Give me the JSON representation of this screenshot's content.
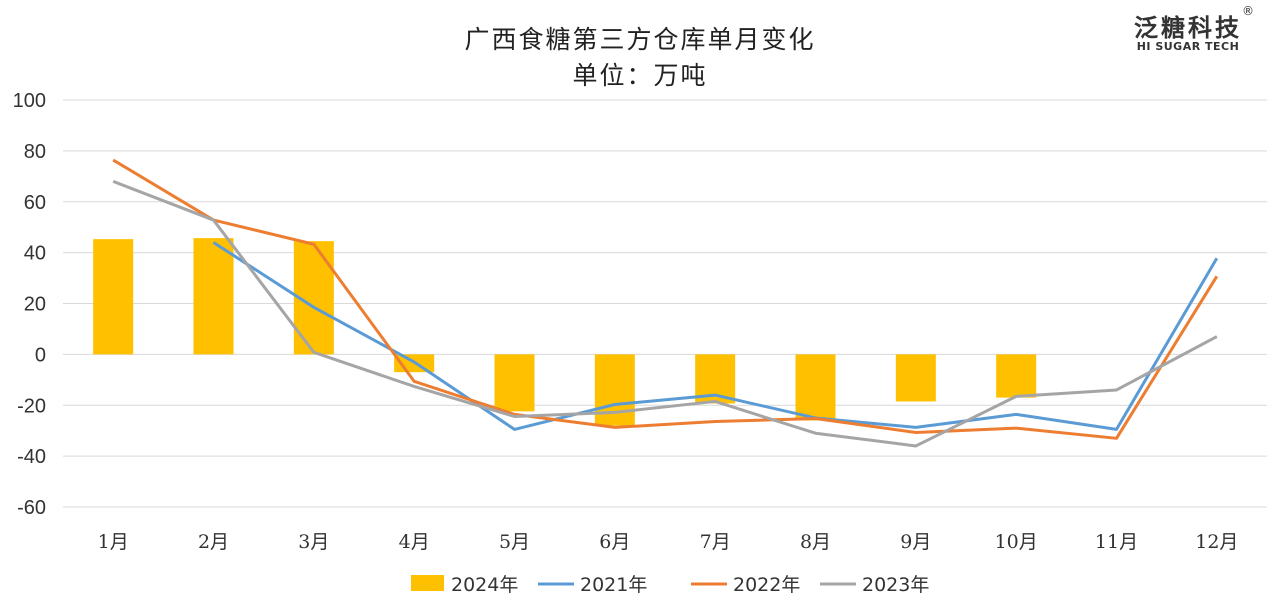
{
  "chart_data": {
    "type": "bar+line",
    "title": "广西食糖第三方仓库单月变化",
    "subtitle": "单位：万吨",
    "categories": [
      "1月",
      "2月",
      "3月",
      "4月",
      "5月",
      "6月",
      "7月",
      "8月",
      "9月",
      "10月",
      "11月",
      "12月"
    ],
    "ylim": [
      -60,
      100
    ],
    "yticks": [
      100,
      80,
      60,
      40,
      20,
      0,
      -20,
      -40,
      -60
    ],
    "grid": true,
    "legend_position": "bottom",
    "series": [
      {
        "name": "2024年",
        "kind": "bar",
        "color": "#FFC000",
        "values": [
          45.3,
          45.7,
          44.5,
          -7,
          -22.4,
          -28,
          -19.3,
          -26,
          -18.5,
          -17,
          null,
          null
        ]
      },
      {
        "name": "2021年",
        "kind": "line",
        "color": "#5B9BD5",
        "values": [
          null,
          44,
          18.5,
          -3,
          -29.5,
          -19.7,
          -16,
          -25,
          -28.7,
          -23.6,
          -29.5,
          37.8
        ]
      },
      {
        "name": "2022年",
        "kind": "line",
        "color": "#ED7D31",
        "values": [
          76.4,
          52.8,
          43.3,
          -10.6,
          -23.6,
          -28.7,
          -26.4,
          -25.2,
          -30.7,
          -29,
          -33,
          30.7
        ]
      },
      {
        "name": "2023年",
        "kind": "line",
        "color": "#A5A5A5",
        "values": [
          68,
          52.8,
          0.8,
          -12.6,
          -24.4,
          -22.8,
          -18.5,
          -31,
          -36,
          -16.5,
          -14,
          7
        ]
      }
    ]
  },
  "logo": {
    "cn": "泛糖科技",
    "en": "HI SUGAR TECH",
    "reg": "®"
  }
}
